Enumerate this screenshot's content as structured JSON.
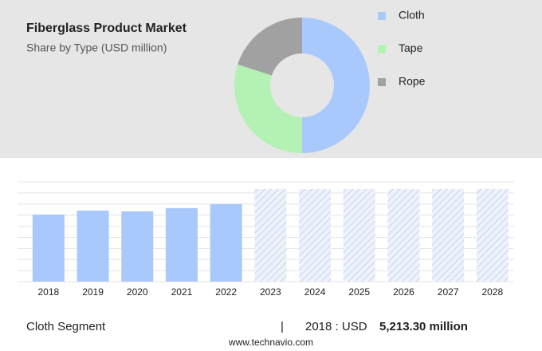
{
  "header": {
    "title": "Fiberglass Product Market",
    "subtitle": "Share by Type (USD million)"
  },
  "chart_data": [
    {
      "type": "donut",
      "categories": [
        "Cloth",
        "Tape",
        "Rope"
      ],
      "values": [
        50,
        30,
        20
      ],
      "colors": [
        "#a9c8fb",
        "#b4f1b4",
        "#a1a1a1"
      ],
      "legend": "right"
    },
    {
      "type": "bar",
      "categories": [
        "2018",
        "2019",
        "2020",
        "2021",
        "2022",
        "2023",
        "2024",
        "2025",
        "2026",
        "2027",
        "2028"
      ],
      "values": [
        5213.3,
        5520,
        5460,
        5710,
        6020,
        null,
        null,
        null,
        null,
        null,
        null
      ],
      "color": "#a9c8fb",
      "ylim": [
        0,
        7750
      ]
    }
  ],
  "footer": {
    "segment": "Cloth Segment",
    "separator": "|",
    "year_label": "2018 : USD",
    "value_label": "5,213.30 million",
    "source": "www.technavio.com"
  }
}
